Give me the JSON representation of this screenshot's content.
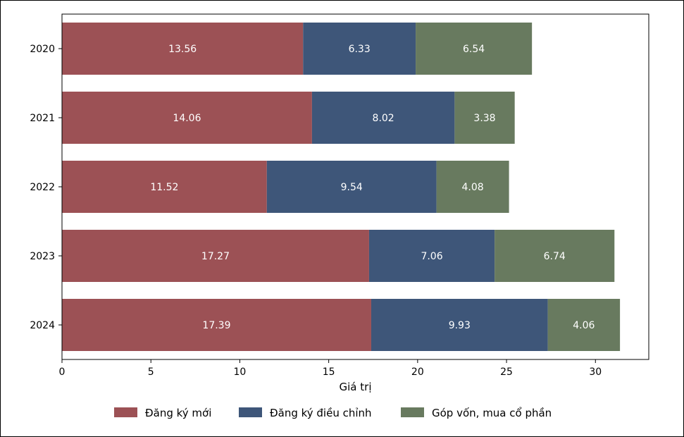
{
  "chart_data": {
    "type": "bar",
    "orientation": "horizontal",
    "stacked": true,
    "categories": [
      "2020",
      "2021",
      "2022",
      "2023",
      "2024"
    ],
    "series": [
      {
        "name": "Đăng ký mới",
        "color": "#9c5155",
        "values": [
          13.56,
          14.06,
          11.52,
          17.27,
          17.39
        ]
      },
      {
        "name": "Đăng ký điều chỉnh",
        "color": "#3e5679",
        "values": [
          6.33,
          8.02,
          9.54,
          7.06,
          9.93
        ]
      },
      {
        "name": "Góp vốn, mua cổ phần",
        "color": "#687a5f",
        "values": [
          6.54,
          3.38,
          4.08,
          6.74,
          4.06
        ]
      }
    ],
    "xlabel": "Giá trị",
    "ylabel": "",
    "title": "",
    "xlim": [
      0,
      33
    ],
    "xticks": [
      0,
      5,
      10,
      15,
      20,
      25,
      30
    ],
    "grid": false,
    "legend_position": "bottom-center",
    "label_color": "#ffffff"
  }
}
